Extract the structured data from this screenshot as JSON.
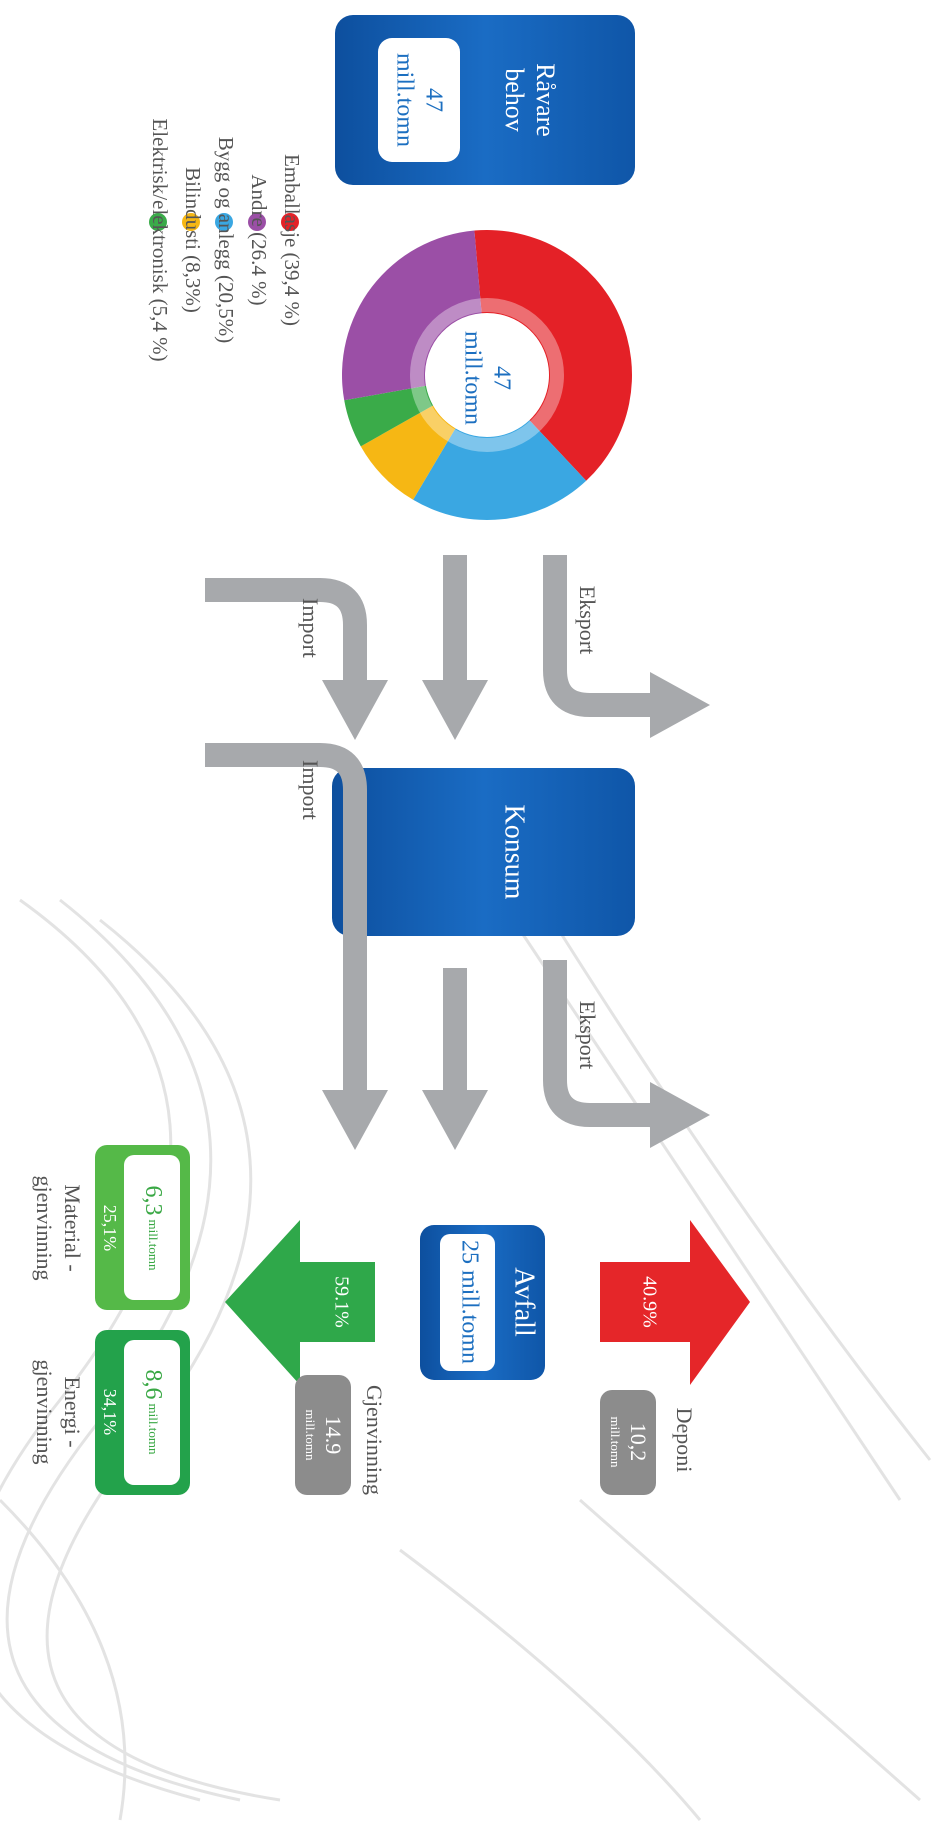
{
  "raavare": {
    "title_lines": [
      "Råvare",
      "behov"
    ],
    "amount_lines": [
      "47",
      "mill.tomn"
    ]
  },
  "donut": {
    "center_lines": [
      "47",
      "mill.tomn"
    ],
    "segments": [
      {
        "label": "Emballasje (39,4 %)",
        "value": 39.4,
        "color": "#e42127"
      },
      {
        "label": "Andre (26.4 %)",
        "value": 26.4,
        "color": "#9b4fa6"
      },
      {
        "label": "Bygg og anlegg (20,5%)",
        "value": 20.5,
        "color": "#3aa7e2"
      },
      {
        "label": "Bilindusti (8,3%)",
        "value": 8.3,
        "color": "#f6b714"
      },
      {
        "label": "Elektrisk/elektronisk (5,4 %)",
        "value": 5.4,
        "color": "#3aab49"
      }
    ]
  },
  "flow1": {
    "import": "Import",
    "export": "Eksport"
  },
  "konsum": "Konsum",
  "flow2": {
    "import": "Import",
    "export": "Eksport"
  },
  "avfall": {
    "title": "Avfall",
    "amount": "25 mill.tomn"
  },
  "deponi": {
    "percent": "40.9%",
    "amount_lines": [
      "10,2",
      "mill.tomn"
    ],
    "label": "Deponi"
  },
  "gjenvinning": {
    "percent": "59.1%",
    "amount_lines": [
      "14.9",
      "mill.tomn"
    ],
    "label": "Gjenvinning"
  },
  "material": {
    "amount": "6,3",
    "unit": "mill.tomn",
    "share": "25,1%",
    "label_lines": [
      "Material -",
      "gjenvinning"
    ]
  },
  "energi": {
    "amount": "8,6",
    "unit": "mill.tomn",
    "share": "34,1%",
    "label_lines": [
      "Energi -",
      "gjenvinning"
    ]
  }
}
